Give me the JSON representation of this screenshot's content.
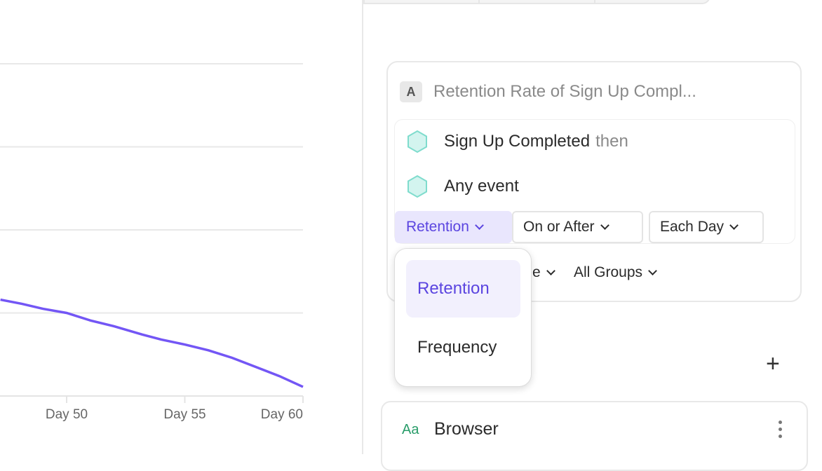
{
  "chart_data": {
    "type": "line",
    "x_tick_labels": [
      "Day 50",
      "Day 55",
      "Day 60"
    ],
    "x_ticks": [
      50,
      55,
      60
    ],
    "xlim": [
      47.2,
      60
    ],
    "grid": true,
    "color": "#7356f5",
    "series": [
      {
        "x": [
          47.2,
          48.1,
          49,
          50,
          51,
          52,
          53.2,
          54,
          55,
          56,
          57,
          58,
          59,
          60
        ],
        "y": [
          1.16,
          1.11,
          1.05,
          1.0,
          0.91,
          0.84,
          0.74,
          0.68,
          0.62,
          0.55,
          0.46,
          0.35,
          0.24,
          0.11
        ]
      }
    ]
  },
  "metric": {
    "badge": "A",
    "title": "Retention Rate of Sign Up Compl..."
  },
  "events": [
    {
      "name": "Sign Up Completed",
      "suffix": "then"
    },
    {
      "name": "Any event"
    }
  ],
  "controls": {
    "type": "Retention",
    "mode": "On or After",
    "interval": "Each Day",
    "overflow": "ˎ"
  },
  "row2": {
    "partial": "e",
    "groups": "All Groups"
  },
  "menu": {
    "items": [
      "Retention",
      "Frequency"
    ],
    "selected": "Retention"
  },
  "breakdown": {
    "icon_text": "Aa",
    "label": "Browser"
  },
  "colors": {
    "accent": "#5b45e0",
    "event": "#7fdccd"
  }
}
